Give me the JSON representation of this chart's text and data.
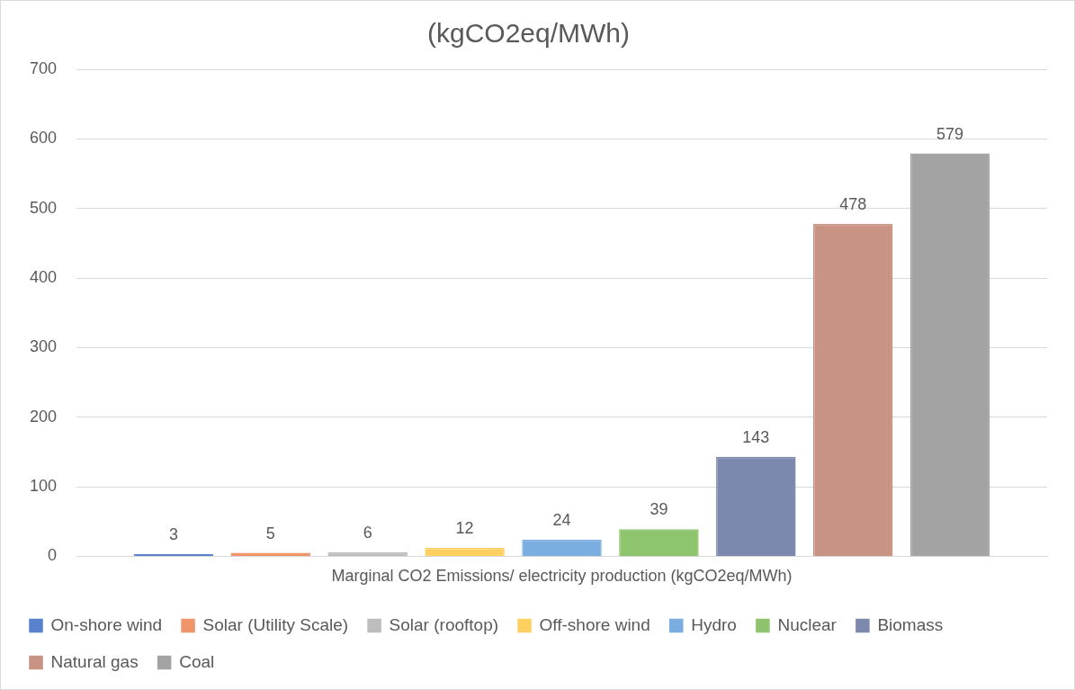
{
  "chart_data": {
    "type": "bar",
    "title": "(kgCO2eq/MWh)",
    "categories": [
      "Marginal CO2 Emissions/ electricity production (kgCO2eq/MWh)"
    ],
    "series": [
      {
        "name": "On-shore wind",
        "color": "#5a82cc",
        "values": [
          3
        ]
      },
      {
        "name": "Solar (Utility Scale)",
        "color": "#f0956a",
        "values": [
          5
        ]
      },
      {
        "name": "Solar (rooftop)",
        "color": "#bdbdbd",
        "values": [
          6
        ]
      },
      {
        "name": "Off-shore wind",
        "color": "#ffd060",
        "values": [
          12
        ]
      },
      {
        "name": "Hydro",
        "color": "#7aaee0",
        "values": [
          24
        ]
      },
      {
        "name": "Nuclear",
        "color": "#8fc46e",
        "values": [
          39
        ]
      },
      {
        "name": "Biomass",
        "color": "#7c88ad",
        "values": [
          143
        ]
      },
      {
        "name": "Natural gas",
        "color": "#c99384",
        "values": [
          478
        ]
      },
      {
        "name": "Coal",
        "color": "#a3a3a3",
        "values": [
          579
        ]
      }
    ],
    "ylim": [
      0,
      700
    ],
    "yticks": [
      0,
      100,
      200,
      300,
      400,
      500,
      600,
      700
    ],
    "grid": "y",
    "legend": "bottom",
    "data_labels": true
  }
}
